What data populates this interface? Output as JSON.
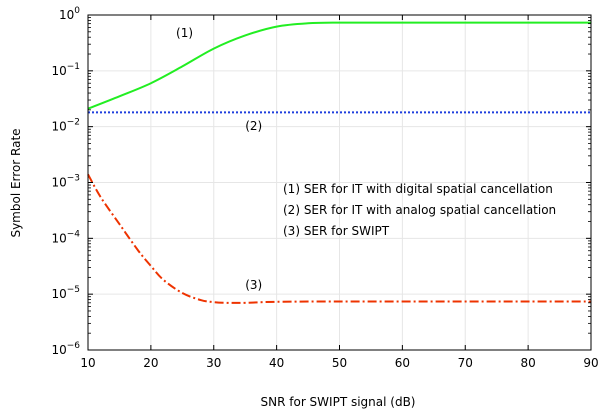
{
  "chart_data": {
    "type": "line",
    "title": "",
    "xlabel": "SNR for SWIPT signal (dB)",
    "ylabel": "Symbol Error Rate",
    "xlim": [
      10,
      90
    ],
    "ylim": [
      1e-06,
      1
    ],
    "yscale": "log",
    "grid": true,
    "x_ticks": [
      10,
      20,
      30,
      40,
      50,
      60,
      70,
      80,
      90
    ],
    "y_ticks": [
      {
        "base": "10",
        "exp": "−6"
      },
      {
        "base": "10",
        "exp": "−5"
      },
      {
        "base": "10",
        "exp": "−4"
      },
      {
        "base": "10",
        "exp": "−3"
      },
      {
        "base": "10",
        "exp": "−2"
      },
      {
        "base": "10",
        "exp": "−1"
      },
      {
        "base": "10",
        "exp": "0"
      }
    ],
    "series": [
      {
        "label": "(1)",
        "color": "#22ee22",
        "style": "solid",
        "x": [
          10,
          15,
          20,
          25,
          30,
          35,
          40,
          45,
          50,
          55,
          60,
          70,
          80,
          90
        ],
        "y": [
          0.021,
          0.035,
          0.06,
          0.12,
          0.25,
          0.43,
          0.62,
          0.71,
          0.73,
          0.73,
          0.73,
          0.73,
          0.73,
          0.73
        ]
      },
      {
        "label": "(2)",
        "color": "#1f3fdd",
        "style": "dotted",
        "x": [
          10,
          90
        ],
        "y": [
          0.018,
          0.018
        ]
      },
      {
        "label": "(3)",
        "color": "#ee3300",
        "style": "dashdot",
        "x": [
          10,
          12,
          15,
          18,
          20,
          22,
          25,
          28,
          30,
          32,
          35,
          40,
          50,
          60,
          70,
          80,
          90
        ],
        "y": [
          0.0014,
          0.00055,
          0.00018,
          6e-05,
          3.2e-05,
          1.8e-05,
          1.05e-05,
          7.8e-06,
          7.2e-06,
          7e-06,
          7e-06,
          7.3e-06,
          7.4e-06,
          7.4e-06,
          7.4e-06,
          7.4e-06,
          7.4e-06
        ]
      }
    ],
    "annotations": [
      {
        "text": "(1)",
        "x": 24,
        "y": 0.4
      },
      {
        "text": "(2)",
        "x": 35,
        "y": 0.0088
      },
      {
        "text": "(3)",
        "x": 35,
        "y": 1.25e-05
      }
    ],
    "legend_text": [
      "(1) SER for IT with digital spatial cancellation",
      "(2) SER for IT with analog spatial cancellation",
      "(3) SER for SWIPT"
    ]
  }
}
